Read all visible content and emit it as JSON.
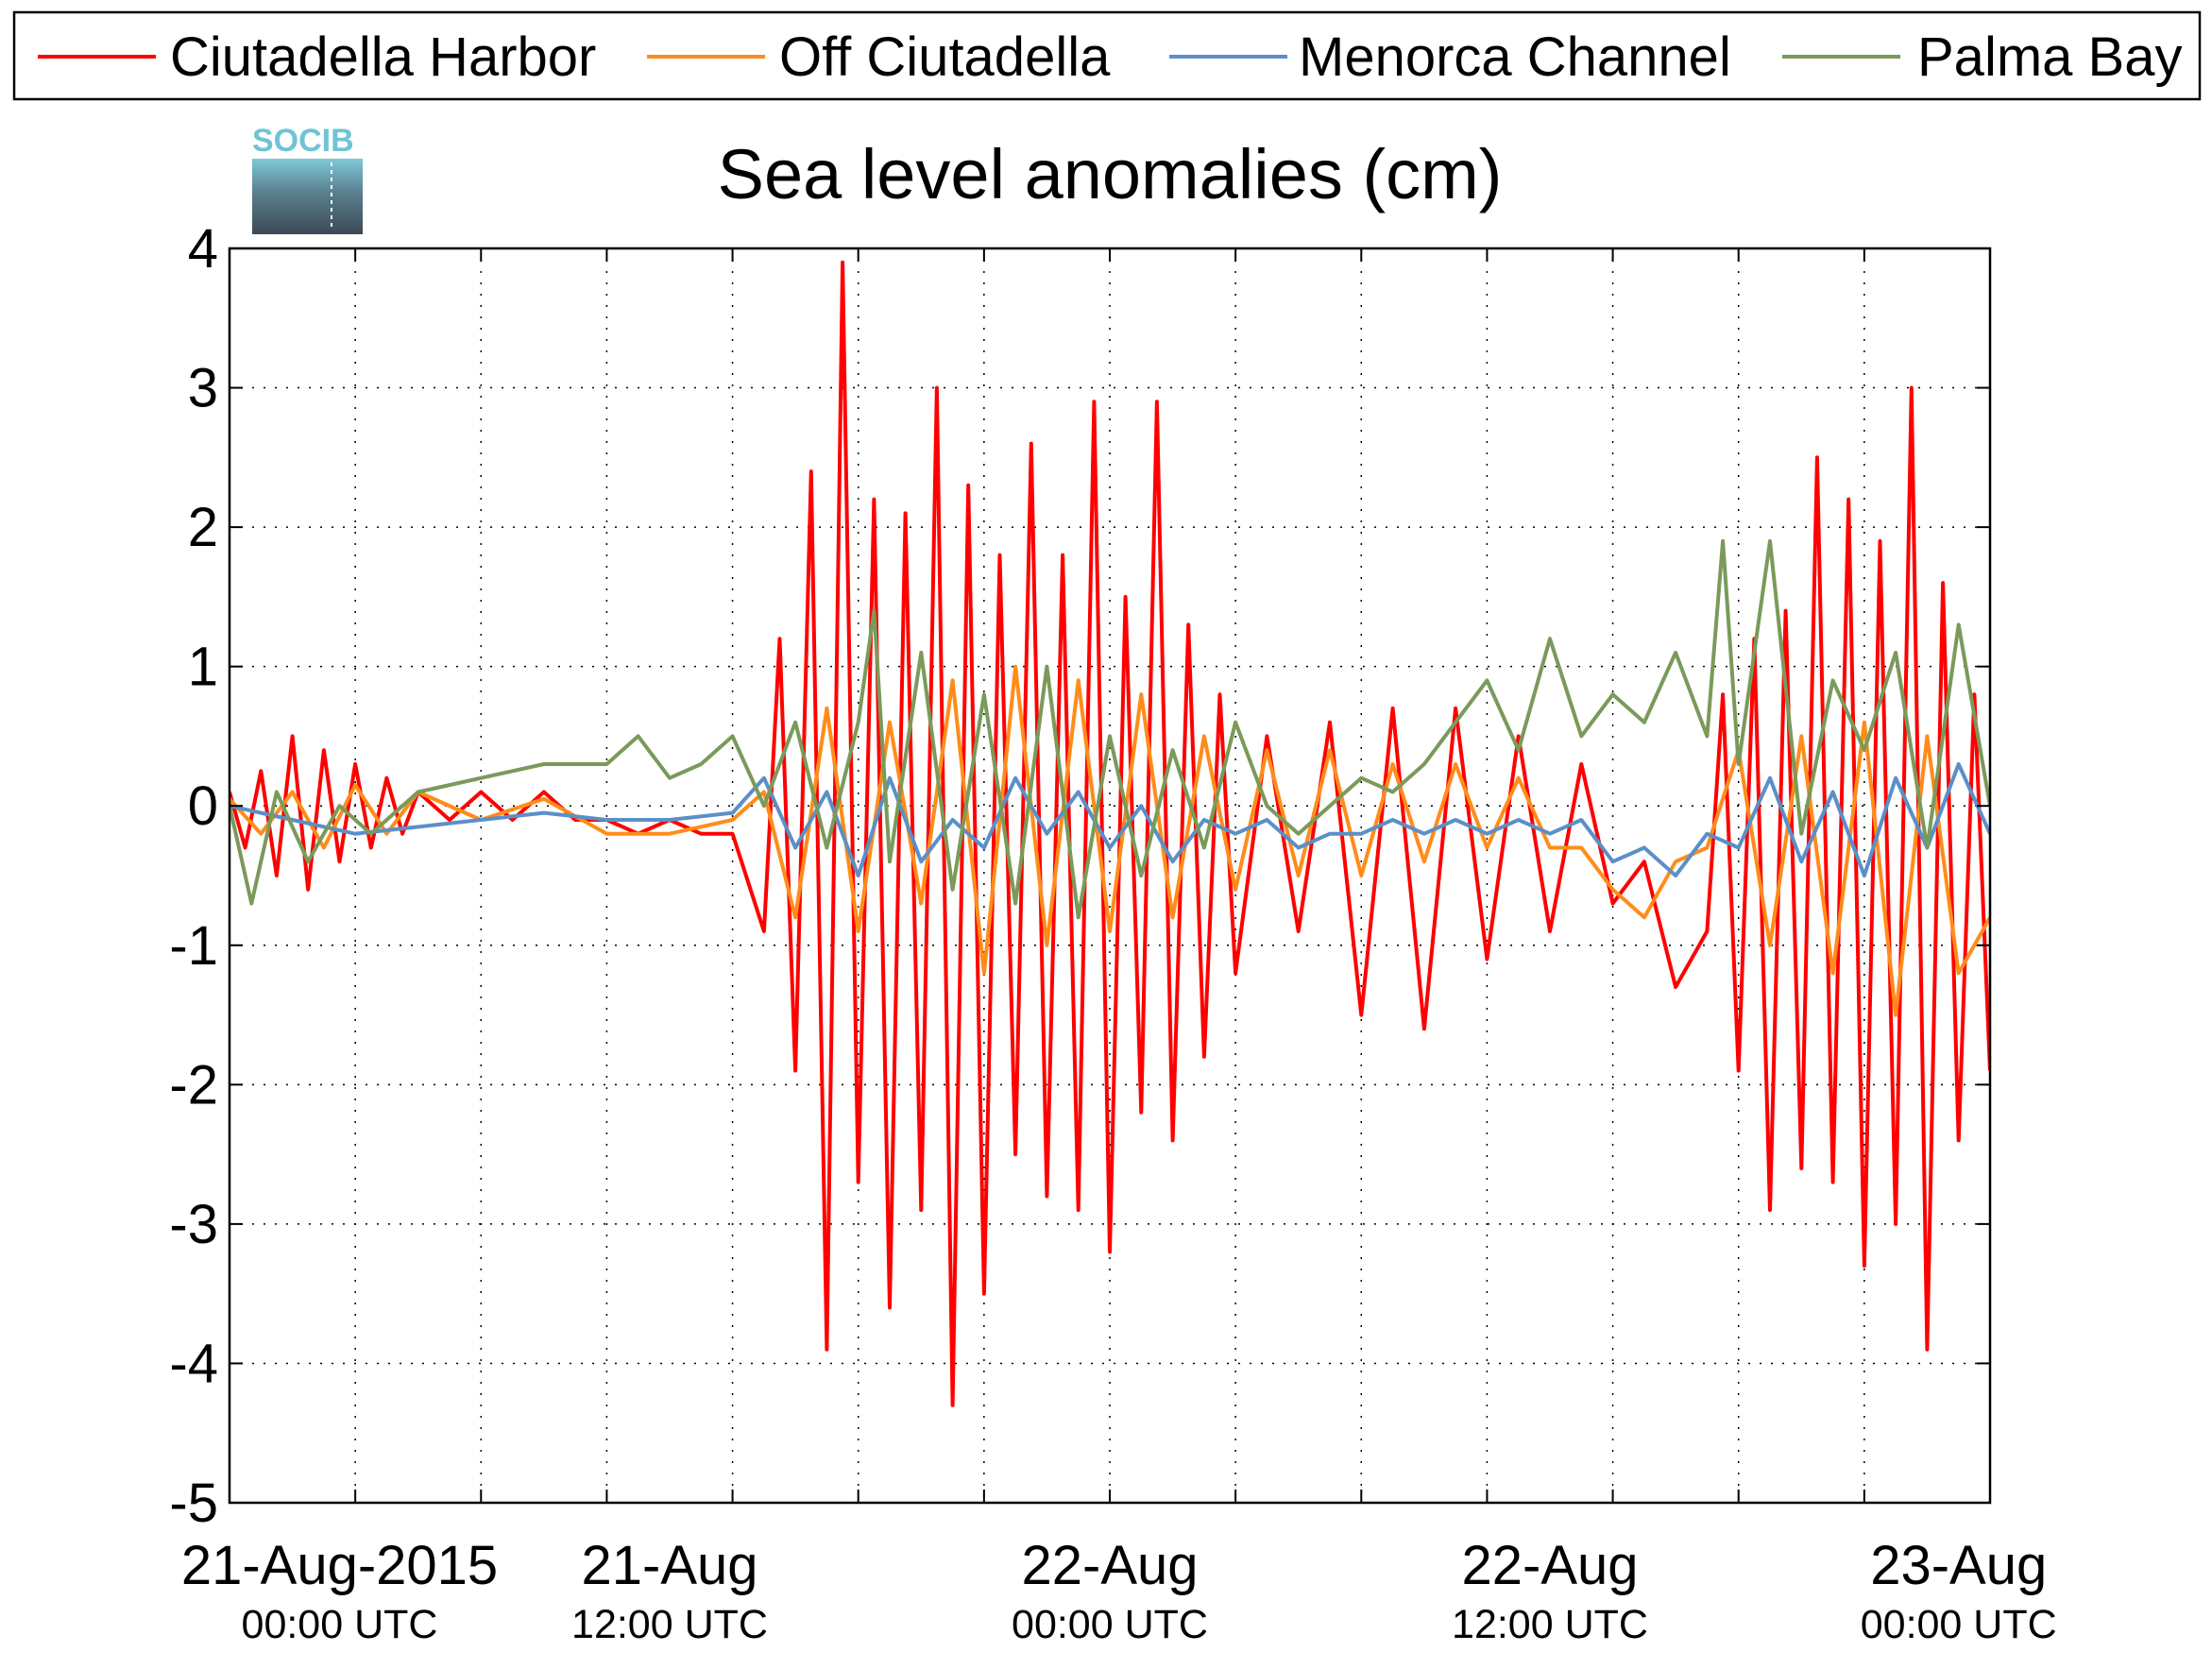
{
  "chart_data": {
    "type": "line",
    "title": "Sea level anomalies (cm)",
    "xlabel": "",
    "ylabel": "",
    "ylim": [
      -5,
      4
    ],
    "y_ticks": [
      "-5",
      "-4",
      "-3",
      "-2",
      "-1",
      "0",
      "1",
      "2",
      "3",
      "4"
    ],
    "x_range_hours": [
      0,
      56
    ],
    "x_ticks": [
      {
        "main": "21-Aug-2015",
        "sub": "00:00 UTC"
      },
      {
        "main": "21-Aug",
        "sub": "12:00 UTC"
      },
      {
        "main": "22-Aug",
        "sub": "00:00 UTC"
      },
      {
        "main": "22-Aug",
        "sub": "12:00 UTC"
      },
      {
        "main": "23-Aug",
        "sub": "00:00 UTC"
      }
    ],
    "grid": true,
    "legend_position": "top",
    "logo_text": "SOCIB",
    "series": [
      {
        "name": "Ciutadella Harbor",
        "color": "#ff0000",
        "x": [
          0,
          0.5,
          1,
          1.5,
          2,
          2.5,
          3,
          3.5,
          4,
          4.5,
          5,
          5.5,
          6,
          7,
          8,
          9,
          10,
          11,
          12,
          13,
          14,
          15,
          16,
          17,
          17.5,
          18,
          18.5,
          19,
          19.5,
          20,
          20.5,
          21,
          21.5,
          22,
          22.5,
          23,
          23.5,
          24,
          24.5,
          25,
          25.5,
          26,
          26.5,
          27,
          27.5,
          28,
          28.5,
          29,
          29.5,
          30,
          30.5,
          31,
          31.5,
          32,
          33,
          34,
          35,
          36,
          37,
          38,
          39,
          40,
          41,
          42,
          43,
          44,
          45,
          46,
          47,
          47.5,
          48,
          48.5,
          49,
          49.5,
          50,
          50.5,
          51,
          51.5,
          52,
          52.5,
          53,
          53.5,
          54,
          54.5,
          55,
          55.5,
          56
        ],
        "y": [
          0.1,
          -0.3,
          0.25,
          -0.5,
          0.5,
          -0.6,
          0.4,
          -0.4,
          0.3,
          -0.3,
          0.2,
          -0.2,
          0.1,
          -0.1,
          0.1,
          -0.1,
          0.1,
          -0.1,
          -0.1,
          -0.2,
          -0.1,
          -0.2,
          -0.2,
          -0.9,
          1.2,
          -1.9,
          2.4,
          -3.9,
          3.9,
          -2.7,
          2.2,
          -3.6,
          2.1,
          -2.9,
          3.0,
          -4.3,
          2.3,
          -3.5,
          1.8,
          -2.5,
          2.6,
          -2.8,
          1.8,
          -2.9,
          2.9,
          -3.2,
          1.5,
          -2.2,
          2.9,
          -2.4,
          1.3,
          -1.8,
          0.8,
          -1.2,
          0.5,
          -0.9,
          0.6,
          -1.5,
          0.7,
          -1.6,
          0.7,
          -1.1,
          0.5,
          -0.9,
          0.3,
          -0.7,
          -0.4,
          -1.3,
          -0.9,
          0.8,
          -1.9,
          1.2,
          -2.9,
          1.4,
          -2.6,
          2.5,
          -2.7,
          2.2,
          -3.3,
          1.9,
          -3.0,
          3.0,
          -3.9,
          1.6,
          -2.4,
          0.8,
          -1.9
        ]
      },
      {
        "name": "Off Ciutadella",
        "color": "#ff8c1a",
        "x": [
          0,
          1,
          2,
          3,
          4,
          5,
          6,
          8,
          10,
          12,
          14,
          16,
          17,
          18,
          19,
          20,
          21,
          22,
          23,
          24,
          25,
          26,
          27,
          28,
          29,
          30,
          31,
          32,
          33,
          34,
          35,
          36,
          37,
          38,
          39,
          40,
          41,
          42,
          43,
          44,
          45,
          46,
          47,
          48,
          49,
          50,
          51,
          52,
          53,
          54,
          55,
          56
        ],
        "y": [
          0.05,
          -0.2,
          0.1,
          -0.3,
          0.15,
          -0.2,
          0.1,
          -0.1,
          0.05,
          -0.2,
          -0.2,
          -0.1,
          0.1,
          -0.8,
          0.7,
          -0.9,
          0.6,
          -0.7,
          0.9,
          -1.2,
          1.0,
          -1.0,
          0.9,
          -0.9,
          0.8,
          -0.8,
          0.5,
          -0.6,
          0.4,
          -0.5,
          0.4,
          -0.5,
          0.3,
          -0.4,
          0.3,
          -0.3,
          0.2,
          -0.3,
          -0.3,
          -0.6,
          -0.8,
          -0.4,
          -0.3,
          0.4,
          -1.0,
          0.5,
          -1.2,
          0.6,
          -1.5,
          0.5,
          -1.2,
          -0.8
        ]
      },
      {
        "name": "Menorca Channel",
        "color": "#5b8fc7",
        "x": [
          0,
          2,
          4,
          6,
          8,
          10,
          12,
          14,
          16,
          17,
          18,
          19,
          20,
          21,
          22,
          23,
          24,
          25,
          26,
          27,
          28,
          29,
          30,
          31,
          32,
          33,
          34,
          35,
          36,
          37,
          38,
          39,
          40,
          41,
          42,
          43,
          44,
          45,
          46,
          47,
          48,
          49,
          50,
          51,
          52,
          53,
          54,
          55,
          56
        ],
        "y": [
          0,
          -0.1,
          -0.2,
          -0.15,
          -0.1,
          -0.05,
          -0.1,
          -0.1,
          -0.05,
          0.2,
          -0.3,
          0.1,
          -0.5,
          0.2,
          -0.4,
          -0.1,
          -0.3,
          0.2,
          -0.2,
          0.1,
          -0.3,
          0.0,
          -0.4,
          -0.1,
          -0.2,
          -0.1,
          -0.3,
          -0.2,
          -0.2,
          -0.1,
          -0.2,
          -0.1,
          -0.2,
          -0.1,
          -0.2,
          -0.1,
          -0.4,
          -0.3,
          -0.5,
          -0.2,
          -0.3,
          0.2,
          -0.4,
          0.1,
          -0.5,
          0.2,
          -0.3,
          0.3,
          -0.2
        ]
      },
      {
        "name": "Palma Bay",
        "color": "#7a9a5a",
        "x": [
          0,
          0.7,
          1.5,
          2.5,
          3.5,
          4.5,
          6,
          8,
          10,
          12,
          13,
          14,
          15,
          16,
          17,
          18,
          19,
          20,
          20.5,
          21,
          22,
          23,
          24,
          25,
          26,
          27,
          28,
          29,
          30,
          31,
          32,
          33,
          34,
          35,
          36,
          37,
          38,
          39,
          40,
          41,
          42,
          43,
          44,
          45,
          46,
          47,
          47.5,
          48,
          49,
          50,
          51,
          52,
          53,
          54,
          55,
          56
        ],
        "y": [
          0,
          -0.7,
          0.1,
          -0.4,
          0.0,
          -0.2,
          0.1,
          0.2,
          0.3,
          0.3,
          0.5,
          0.2,
          0.3,
          0.5,
          0.0,
          0.6,
          -0.3,
          0.6,
          1.4,
          -0.4,
          1.1,
          -0.6,
          0.8,
          -0.7,
          1.0,
          -0.8,
          0.5,
          -0.5,
          0.4,
          -0.3,
          0.6,
          0.0,
          -0.2,
          0.0,
          0.2,
          0.1,
          0.3,
          0.6,
          0.9,
          0.4,
          1.2,
          0.5,
          0.8,
          0.6,
          1.1,
          0.5,
          1.9,
          0.3,
          1.9,
          -0.2,
          0.9,
          0.4,
          1.1,
          -0.3,
          1.3,
          0.0
        ]
      }
    ]
  }
}
